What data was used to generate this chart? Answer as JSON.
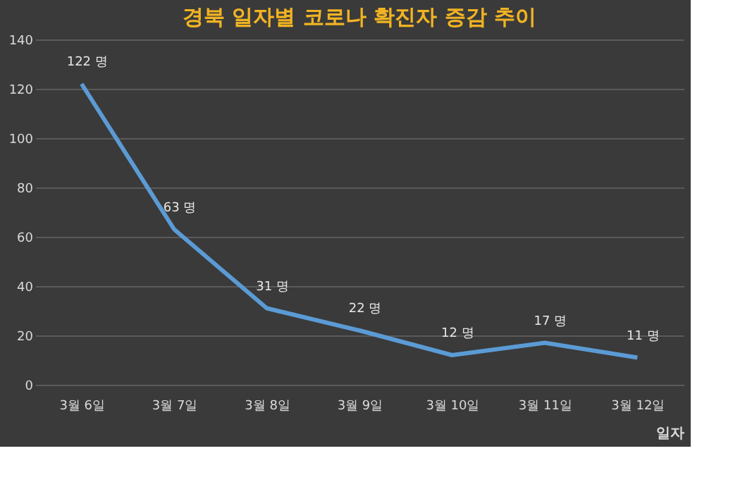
{
  "chart_data": {
    "type": "line",
    "title": "경북 일자별 코로나 확진자 증감 추이",
    "xlabel": "일자",
    "categories": [
      "3월 6일",
      "3월 7일",
      "3월 8일",
      "3월 9일",
      "3월 10일",
      "3월 11일",
      "3월 12일"
    ],
    "series": [
      {
        "color": "#5b9bd5",
        "values": [
          122,
          63,
          31,
          22,
          12,
          17,
          11
        ],
        "value_labels": [
          "122 명",
          "63 명",
          "31 명",
          "22 명",
          "12 명",
          "17 명",
          "11 명"
        ]
      }
    ],
    "ylim": [
      0,
      140
    ],
    "yticks": [
      0,
      20,
      40,
      60,
      80,
      100,
      120,
      140
    ],
    "grid": "y",
    "marker": "none",
    "line_style": "solid"
  }
}
